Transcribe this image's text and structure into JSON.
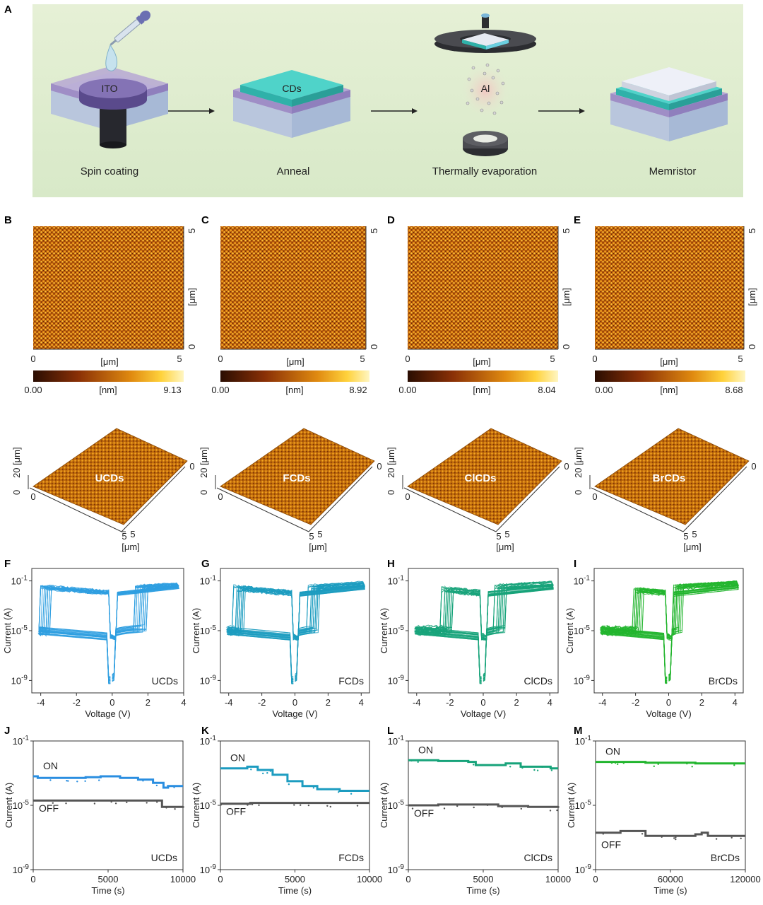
{
  "panel_letters": [
    "A",
    "B",
    "C",
    "D",
    "E",
    "F",
    "G",
    "H",
    "I",
    "J",
    "K",
    "L",
    "M"
  ],
  "schematic": {
    "steps": [
      "Spin coating",
      "Anneal",
      "Thermally evaporation",
      "Memristor"
    ],
    "labels": {
      "substrate": "ITO",
      "film": "CDs",
      "metal": "Al"
    }
  },
  "afm": [
    {
      "id": "B",
      "axis_unit": "[μm]",
      "height_unit": "[nm]",
      "scale_min": "0.00",
      "scale_max": "9.13",
      "sample": "UCDs"
    },
    {
      "id": "C",
      "axis_unit": "[μm]",
      "height_unit": "[nm]",
      "scale_min": "0.00",
      "scale_max": "8.92",
      "sample": "FCDs"
    },
    {
      "id": "D",
      "axis_unit": "[μm]",
      "height_unit": "[nm]",
      "scale_min": "0.00",
      "scale_max": "8.04",
      "sample": "ClCDs"
    },
    {
      "id": "E",
      "axis_unit": "[μm]",
      "height_unit": "[nm]",
      "scale_min": "0.00",
      "scale_max": "8.68",
      "sample": "BrCDs"
    }
  ],
  "afm_ticks": {
    "x": [
      "0",
      "5"
    ],
    "y": [
      "0",
      "5"
    ],
    "z": [
      "0",
      "20"
    ],
    "z_label": "20 [μm]"
  },
  "chart_data": [
    {
      "type": "line",
      "panel": "F",
      "title": "UCDs",
      "xlabel": "Voltage (V)",
      "ylabel": "Current (A)",
      "xlim": [
        -4.5,
        4
      ],
      "ylim_log10": [
        -10,
        0
      ],
      "xticks": [
        -4,
        -2,
        0,
        2,
        4
      ],
      "yticks_log10": [
        -1,
        -5,
        -9
      ],
      "color": "#2f9fe0",
      "set_voltage": 1.6,
      "reset_voltage": -3.8
    },
    {
      "type": "line",
      "panel": "G",
      "title": "FCDs",
      "xlabel": "Voltage (V)",
      "ylabel": "Current (A)",
      "xlim": [
        -4.5,
        4.5
      ],
      "ylim_log10": [
        -10,
        0
      ],
      "xticks": [
        -4,
        -2,
        0,
        2,
        4
      ],
      "yticks_log10": [
        -1,
        -5,
        -9
      ],
      "color": "#1c9cc0",
      "set_voltage": 1.1,
      "reset_voltage": -3.4
    },
    {
      "type": "line",
      "panel": "H",
      "title": "ClCDs",
      "xlabel": "Voltage (V)",
      "ylabel": "Current (A)",
      "xlim": [
        -4.5,
        4.5
      ],
      "ylim_log10": [
        -10,
        0
      ],
      "xticks": [
        -4,
        -2,
        0,
        2,
        4
      ],
      "yticks_log10": [
        -1,
        -5,
        -9
      ],
      "color": "#17a37a",
      "set_voltage": 1.0,
      "reset_voltage": -2.2
    },
    {
      "type": "line",
      "panel": "I",
      "title": "BrCDs",
      "xlabel": "Voltage (V)",
      "ylabel": "Current (A)",
      "xlim": [
        -4.5,
        4.5
      ],
      "ylim_log10": [
        -10,
        0
      ],
      "xticks": [
        -4,
        -2,
        0,
        2,
        4
      ],
      "yticks_log10": [
        -1,
        -5,
        -9
      ],
      "color": "#22b52e",
      "set_voltage": 0.6,
      "reset_voltage": -1.8
    },
    {
      "type": "line",
      "panel": "J",
      "title": "UCDs",
      "xlabel": "Time (s)",
      "ylabel": "Current (A)",
      "xlim": [
        0,
        10000
      ],
      "ylim_log10": [
        -9,
        -1
      ],
      "xticks": [
        0,
        5000,
        10000
      ],
      "yticks_log10": [
        -1,
        -5,
        -9
      ],
      "on_color": "#2a8ee0",
      "off_color": "#555555",
      "on_label": "ON",
      "off_label": "OFF",
      "series": [
        {
          "name": "ON",
          "x": [
            0,
            300,
            2000,
            3500,
            4500,
            5800,
            7000,
            8000,
            8700,
            9000,
            10000
          ],
          "log10_current": [
            -3.2,
            -3.3,
            -3.3,
            -3.25,
            -3.2,
            -3.3,
            -3.4,
            -3.6,
            -3.9,
            -3.8,
            -3.8
          ]
        },
        {
          "name": "OFF",
          "x": [
            0,
            2000,
            5000,
            8500,
            8600,
            10000
          ],
          "log10_current": [
            -4.7,
            -4.7,
            -4.7,
            -4.7,
            -5.1,
            -5.05
          ]
        }
      ]
    },
    {
      "type": "line",
      "panel": "K",
      "title": "FCDs",
      "xlabel": "Time (s)",
      "ylabel": "Current (A)",
      "xlim": [
        0,
        10000
      ],
      "ylim_log10": [
        -9,
        -1
      ],
      "xticks": [
        0,
        5000,
        10000
      ],
      "yticks_log10": [
        -1,
        -5,
        -9
      ],
      "on_color": "#1c9cc0",
      "off_color": "#555555",
      "on_label": "ON",
      "off_label": "OFF",
      "series": [
        {
          "name": "ON",
          "x": [
            0,
            1800,
            2500,
            3500,
            4500,
            5500,
            6500,
            8000,
            10000
          ],
          "log10_current": [
            -2.7,
            -2.6,
            -2.8,
            -3.1,
            -3.5,
            -3.8,
            -4.0,
            -4.1,
            -4.1
          ]
        },
        {
          "name": "OFF",
          "x": [
            0,
            2000,
            5000,
            10000
          ],
          "log10_current": [
            -4.9,
            -4.85,
            -4.85,
            -4.85
          ]
        }
      ]
    },
    {
      "type": "line",
      "panel": "L",
      "title": "ClCDs",
      "xlabel": "Time (s)",
      "ylabel": "Current (A)",
      "xlim": [
        0,
        10000
      ],
      "ylim_log10": [
        -9,
        -1
      ],
      "xticks": [
        0,
        5000,
        10000
      ],
      "yticks_log10": [
        -1,
        -5,
        -9
      ],
      "on_color": "#17a37a",
      "off_color": "#555555",
      "on_label": "ON",
      "off_label": "OFF",
      "series": [
        {
          "name": "ON",
          "x": [
            0,
            2000,
            4000,
            4500,
            5500,
            6500,
            7500,
            8500,
            9500,
            10000
          ],
          "log10_current": [
            -2.2,
            -2.25,
            -2.3,
            -2.5,
            -2.5,
            -2.4,
            -2.6,
            -2.6,
            -2.7,
            -2.7
          ]
        },
        {
          "name": "OFF",
          "x": [
            0,
            2000,
            4000,
            6000,
            8000,
            10000
          ],
          "log10_current": [
            -5.0,
            -4.95,
            -4.95,
            -5.05,
            -5.1,
            -5.05
          ]
        }
      ]
    },
    {
      "type": "line",
      "panel": "M",
      "title": "BrCDs",
      "xlabel": "Time (s)",
      "ylabel": "Current (A)",
      "xlim": [
        0,
        120000
      ],
      "ylim_log10": [
        -9,
        -1
      ],
      "xticks": [
        0,
        60000,
        120000
      ],
      "yticks_log10": [
        -1,
        -5,
        -9
      ],
      "on_color": "#22b52e",
      "off_color": "#555555",
      "on_label": "ON",
      "off_label": "OFF",
      "series": [
        {
          "name": "ON",
          "x": [
            0,
            20000,
            40000,
            60000,
            80000,
            100000,
            120000
          ],
          "log10_current": [
            -2.3,
            -2.3,
            -2.35,
            -2.35,
            -2.4,
            -2.4,
            -2.4
          ]
        },
        {
          "name": "OFF",
          "x": [
            0,
            10000,
            20000,
            30000,
            40000,
            50000,
            60000,
            80000,
            85000,
            90000,
            120000
          ],
          "log10_current": [
            -6.7,
            -6.7,
            -6.6,
            -6.6,
            -6.9,
            -6.9,
            -6.9,
            -6.8,
            -6.7,
            -6.9,
            -6.9
          ]
        }
      ]
    }
  ]
}
